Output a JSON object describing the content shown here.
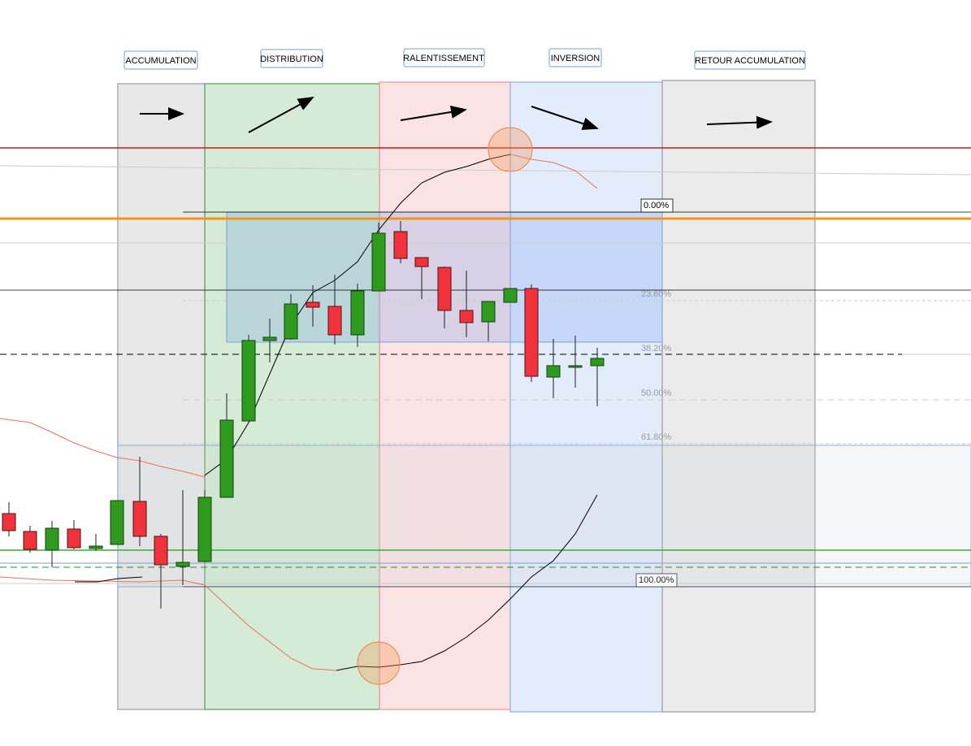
{
  "phases": [
    {
      "label": "ACCUMULATION"
    },
    {
      "label": "DISTRIBUTION"
    },
    {
      "label": "RALENTISSEMENT"
    },
    {
      "label": "INVERSION"
    },
    {
      "label": "RETOUR ACCUMULATION"
    }
  ],
  "fib_levels": [
    {
      "label": "0.00%"
    },
    {
      "label": "23.60%"
    },
    {
      "label": "38.20%"
    },
    {
      "label": "50.00%"
    },
    {
      "label": "61.80%"
    },
    {
      "label": "100.00%"
    }
  ]
}
